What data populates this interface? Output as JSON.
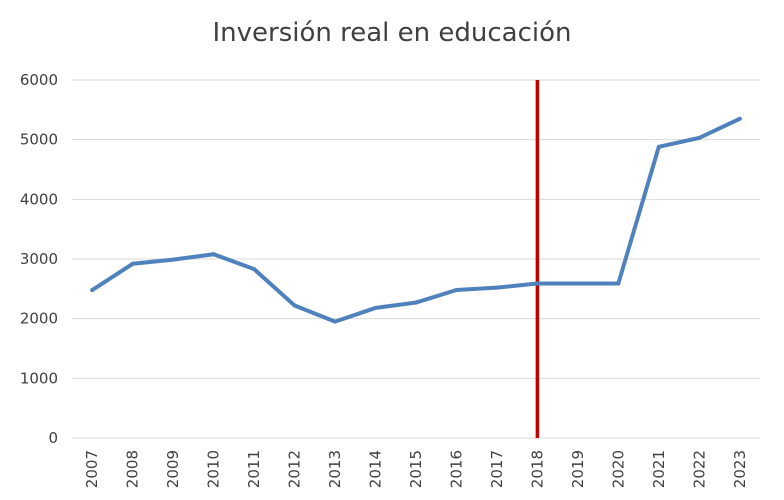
{
  "chart_data": {
    "type": "line",
    "title": "Inversión real en educación",
    "xlabel": "",
    "ylabel": "",
    "categories": [
      "2007",
      "2008",
      "2009",
      "2010",
      "2011",
      "2012",
      "2013",
      "2014",
      "2015",
      "2016",
      "2017",
      "2018",
      "2019",
      "2020",
      "2021",
      "2022",
      "2023"
    ],
    "series": [
      {
        "values": [
          2480,
          2920,
          2990,
          3080,
          2830,
          2220,
          1950,
          2180,
          2270,
          2480,
          2520,
          2590,
          2590,
          2590,
          4880,
          5030,
          5350
        ],
        "color": "#4f81bd"
      }
    ],
    "ylim": [
      0,
      6000
    ],
    "yticks": [
      0,
      1000,
      2000,
      3000,
      4000,
      5000,
      6000
    ],
    "grid": true,
    "legend": "none",
    "annotations": [
      {
        "type": "vertical-line",
        "at": "2018",
        "color": "#c00000"
      }
    ]
  }
}
